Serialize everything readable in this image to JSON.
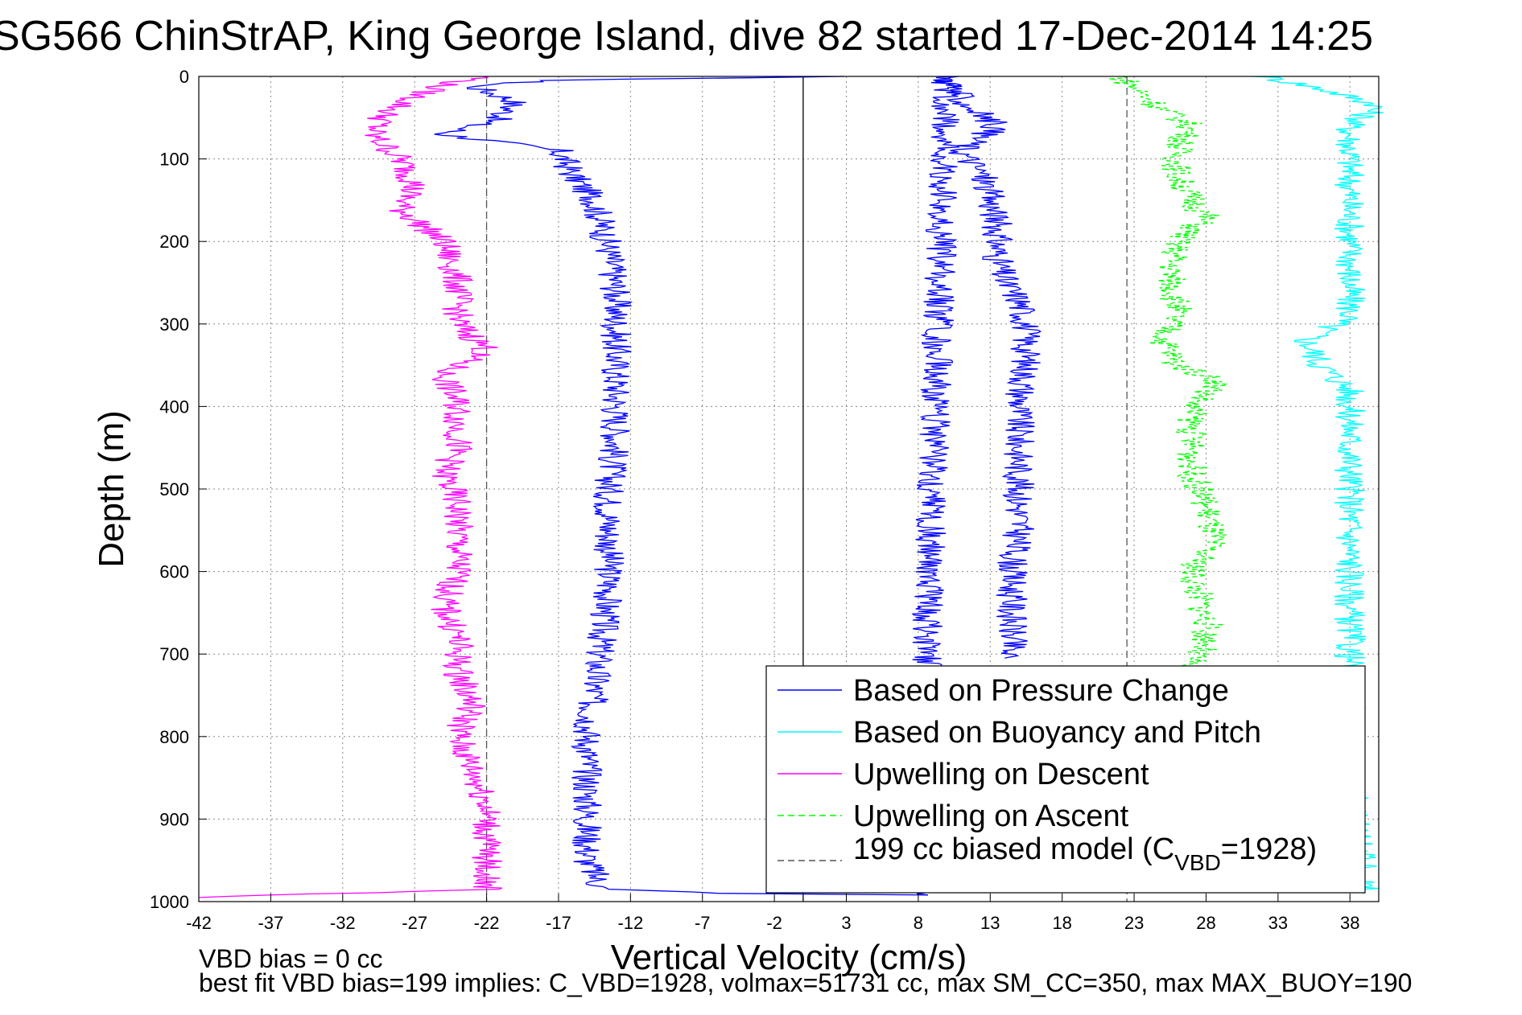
{
  "chart_data": {
    "type": "line",
    "title": "SG566 ChinStrAP, King George Island, dive 82 started 17-Dec-2014 14:25",
    "xlabel": "Vertical Velocity (cm/s)",
    "ylabel": "Depth (m)",
    "xlim": [
      -42,
      40
    ],
    "ylim": [
      1000,
      0
    ],
    "xticks": [
      "-42",
      "-37",
      "-32",
      "-27",
      "-22",
      "-17",
      "-12",
      "-7",
      "-2",
      "3",
      "8",
      "13",
      "18",
      "23",
      "28",
      "33",
      "38"
    ],
    "yticks": [
      "0",
      "100",
      "200",
      "300",
      "400",
      "500",
      "600",
      "700",
      "800",
      "900",
      "1000"
    ],
    "grid": true,
    "legend_position": "bottom-right",
    "series": [
      {
        "name": "Based on Pressure Change",
        "color": "#0000ff",
        "style": "solid",
        "points": [
          [
            2,
            0
          ],
          [
            -18,
            5
          ],
          [
            -23,
            12
          ],
          [
            -20,
            30
          ],
          [
            -21,
            50
          ],
          [
            -25,
            70
          ],
          [
            -17,
            90
          ],
          [
            -16,
            120
          ],
          [
            -14.5,
            150
          ],
          [
            -14,
            180
          ],
          [
            -13.5,
            210
          ],
          [
            -13,
            260
          ],
          [
            -13,
            320
          ],
          [
            -13,
            380
          ],
          [
            -13,
            440
          ],
          [
            -13.5,
            500
          ],
          [
            -13.5,
            560
          ],
          [
            -13.5,
            620
          ],
          [
            -14,
            680
          ],
          [
            -14.5,
            740
          ],
          [
            -15,
            800
          ],
          [
            -15,
            850
          ],
          [
            -15,
            900
          ],
          [
            -15,
            950
          ],
          [
            -14,
            985
          ],
          [
            -5,
            990
          ],
          [
            8,
            992
          ],
          [
            10,
            0
          ],
          [
            11,
            30
          ],
          [
            13.5,
            60
          ],
          [
            11,
            90
          ],
          [
            12.5,
            120
          ],
          [
            13,
            150
          ],
          [
            13.5,
            180
          ],
          [
            13.5,
            220
          ],
          [
            14,
            250
          ],
          [
            15,
            270
          ],
          [
            15.5,
            300
          ],
          [
            15.5,
            350
          ],
          [
            15,
            400
          ],
          [
            15,
            450
          ],
          [
            15,
            500
          ],
          [
            15,
            550
          ],
          [
            14.5,
            600
          ],
          [
            14.5,
            650
          ],
          [
            14.5,
            690
          ],
          [
            14,
            705
          ]
        ]
      },
      {
        "name": "Based on Buoyancy and Pitch",
        "color": "#00ffff",
        "style": "solid",
        "points": [
          [
            32,
            0
          ],
          [
            36,
            15
          ],
          [
            40,
            35
          ],
          [
            38,
            60
          ],
          [
            38,
            90
          ],
          [
            38,
            130
          ],
          [
            38,
            180
          ],
          [
            38,
            230
          ],
          [
            38,
            290
          ],
          [
            35,
            320
          ],
          [
            36,
            350
          ],
          [
            38,
            380
          ],
          [
            38,
            420
          ],
          [
            38,
            470
          ],
          [
            38,
            500
          ],
          [
            38,
            550
          ],
          [
            38,
            600
          ],
          [
            38,
            650
          ],
          [
            38,
            700
          ],
          [
            38,
            750
          ],
          [
            38,
            790
          ],
          [
            38,
            840
          ],
          [
            39,
            990
          ]
        ]
      },
      {
        "name": "Upwelling on Descent",
        "color": "#ff00ff",
        "style": "solid",
        "points": [
          [
            -22,
            0
          ],
          [
            -25,
            10
          ],
          [
            -27,
            25
          ],
          [
            -29,
            45
          ],
          [
            -30,
            70
          ],
          [
            -28,
            100
          ],
          [
            -27,
            130
          ],
          [
            -28,
            160
          ],
          [
            -25,
            200
          ],
          [
            -24,
            250
          ],
          [
            -24,
            300
          ],
          [
            -22,
            330
          ],
          [
            -25,
            360
          ],
          [
            -24,
            400
          ],
          [
            -24,
            450
          ],
          [
            -25,
            480
          ],
          [
            -24,
            520
          ],
          [
            -24,
            560
          ],
          [
            -24,
            600
          ],
          [
            -25,
            640
          ],
          [
            -24,
            680
          ],
          [
            -24,
            720
          ],
          [
            -23,
            760
          ],
          [
            -24,
            800
          ],
          [
            -23,
            840
          ],
          [
            -22,
            880
          ],
          [
            -22,
            920
          ],
          [
            -22,
            960
          ],
          [
            -22,
            985
          ],
          [
            -42,
            995
          ]
        ]
      },
      {
        "name": "Upwelling on Ascent",
        "color": "#00ff00",
        "style": "dashed",
        "points": [
          [
            22,
            0
          ],
          [
            23.5,
            20
          ],
          [
            25,
            40
          ],
          [
            27,
            60
          ],
          [
            26,
            90
          ],
          [
            26,
            120
          ],
          [
            27,
            150
          ],
          [
            28,
            170
          ],
          [
            26,
            200
          ],
          [
            25.5,
            240
          ],
          [
            26,
            280
          ],
          [
            25,
            320
          ],
          [
            26,
            350
          ],
          [
            29,
            370
          ],
          [
            27,
            400
          ],
          [
            27,
            440
          ],
          [
            27,
            480
          ],
          [
            28,
            520
          ],
          [
            28.5,
            560
          ],
          [
            27,
            600
          ],
          [
            27.5,
            630
          ],
          [
            28,
            660
          ],
          [
            28,
            690
          ],
          [
            27,
            705
          ],
          [
            23,
            990
          ]
        ]
      },
      {
        "name": "199 cc biased model (C_VBD=1928)",
        "color": "#000000",
        "style": "dashed",
        "points": []
      }
    ],
    "reference_lines": [
      {
        "x": -22,
        "style": "dashed",
        "color": "#555555"
      },
      {
        "x": 0,
        "style": "solid",
        "color": "#000000"
      },
      {
        "x": 22.5,
        "style": "dashed",
        "color": "#555555"
      }
    ],
    "legend_labels": {
      "pressure": "Based on Pressure Change",
      "buoyancy": "Based on Buoyancy and Pitch",
      "descent": "Upwelling on Descent",
      "ascent": "Upwelling on Ascent",
      "model_prefix": "199 cc biased model (C",
      "model_sub": "VBD",
      "model_suffix": "=1928)"
    }
  },
  "footer": {
    "line1": "VBD bias = 0 cc",
    "line2": "best fit VBD bias=199 implies: C_VBD=1928, volmax=51731 cc, max SM_CC=350, max MAX_BUOY=190"
  }
}
